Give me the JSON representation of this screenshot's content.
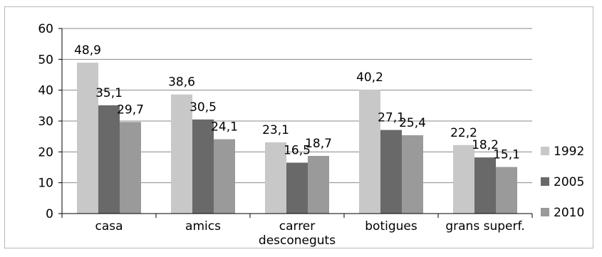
{
  "chart_data": {
    "type": "bar",
    "categories": [
      [
        "casa"
      ],
      [
        "amics"
      ],
      [
        "carrer",
        "desconeguts"
      ],
      [
        "botigues"
      ],
      [
        "grans superf."
      ]
    ],
    "series": [
      {
        "name": "1992",
        "color": "#c8c8c8",
        "values": [
          48.9,
          38.6,
          23.1,
          40.2,
          22.2
        ],
        "labels": [
          "48,9",
          "38,6",
          "23,1",
          "40,2",
          "22,2"
        ]
      },
      {
        "name": "2005",
        "color": "#696969",
        "values": [
          35.1,
          30.5,
          16.5,
          27.1,
          18.2
        ],
        "labels": [
          "35,1",
          "30,5",
          "16,5",
          "27,1",
          "18,2"
        ]
      },
      {
        "name": "2010",
        "color": "#9a9a9a",
        "values": [
          29.7,
          24.1,
          18.7,
          25.4,
          15.1
        ],
        "labels": [
          "29,7",
          "24,1",
          "18,7",
          "25,4",
          "15,1"
        ]
      }
    ],
    "ylim": [
      0,
      60
    ],
    "yticks": [
      "0",
      "10",
      "20",
      "30",
      "40",
      "50",
      "60"
    ],
    "grid": true,
    "legend_position": "right"
  }
}
